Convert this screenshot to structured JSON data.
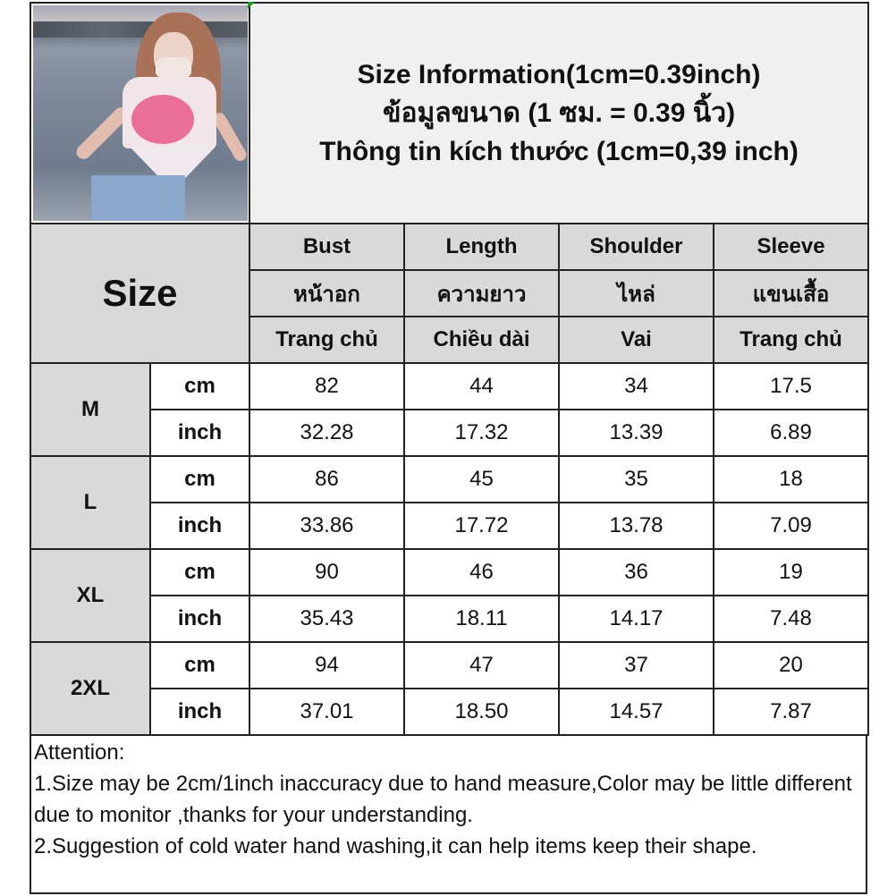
{
  "title": {
    "line1": "Size Information(1cm=0.39inch)",
    "line2": "ข้อมูลขนาด (1 ซม. = 0.39 นิ้ว)",
    "line3": "Thông tin kích thước (1cm=0,39 inch)"
  },
  "size_label": "Size",
  "columns": [
    {
      "en": "Bust",
      "th": "หน้าอก",
      "vi": "Trang chủ"
    },
    {
      "en": "Length",
      "th": "ความยาว",
      "vi": "Chiều dài"
    },
    {
      "en": "Shoulder",
      "th": "ไหล่",
      "vi": "Vai"
    },
    {
      "en": "Sleeve",
      "th": "แขนเสื้อ",
      "vi": "Trang chủ"
    }
  ],
  "rows": [
    {
      "size": "M",
      "cm_label": "cm",
      "inch_label": "inch",
      "cm": [
        "82",
        "44",
        "34",
        "17.5"
      ],
      "inch": [
        "32.28",
        "17.32",
        "13.39",
        "6.89"
      ]
    },
    {
      "size": "L",
      "cm_label": "cm",
      "inch_label": "inch",
      "cm": [
        "86",
        "45",
        "35",
        "18"
      ],
      "inch": [
        "33.86",
        "17.72",
        "13.78",
        "7.09"
      ]
    },
    {
      "size": "XL",
      "cm_label": "cm",
      "inch_label": "inch",
      "cm": [
        "90",
        "46",
        "36",
        "19"
      ],
      "inch": [
        "35.43",
        "18.11",
        "14.17",
        "7.48"
      ]
    },
    {
      "size": "2XL",
      "cm_label": "cm",
      "inch_label": "inch",
      "cm": [
        "94",
        "47",
        "37",
        "20"
      ],
      "inch": [
        "37.01",
        "18.50",
        "14.57",
        "7.87"
      ]
    }
  ],
  "attention": {
    "heading": "Attention:",
    "line1": "1.Size may be 2cm/1inch inaccuracy due to hand measure,Color may be little different due to monitor ,thanks for your understanding.",
    "line2": "2.Suggestion of cold water hand washing,it can help items keep their shape."
  },
  "colors": {
    "header_bg": "#d9d9d9",
    "title_bg": "#f0f0f0",
    "border": "#222222"
  }
}
